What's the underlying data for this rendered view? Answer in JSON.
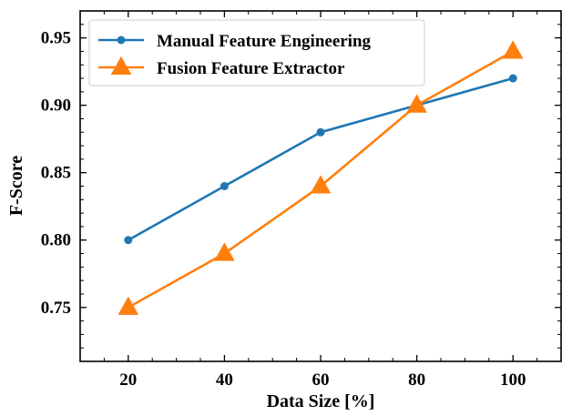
{
  "chart_data": {
    "type": "line",
    "xlabel": "Data Size [%]",
    "ylabel": "F-Score",
    "xlim": [
      10,
      110
    ],
    "ylim": [
      0.71,
      0.97
    ],
    "xticks": [
      20,
      40,
      60,
      80,
      100
    ],
    "yticks": [
      0.75,
      0.8,
      0.85,
      0.9,
      0.95
    ],
    "ytick_labels": [
      "0.75",
      "0.80",
      "0.85",
      "0.90",
      "0.95"
    ],
    "x": [
      20,
      40,
      60,
      80,
      100
    ],
    "series": [
      {
        "name": "Manual Feature Engineering",
        "values": [
          0.8,
          0.84,
          0.88,
          0.9,
          0.92
        ],
        "color": "#1f77b4",
        "marker": "circle"
      },
      {
        "name": "Fusion Feature Extractor",
        "values": [
          0.75,
          0.79,
          0.84,
          0.9,
          0.94
        ],
        "color": "#ff7f0e",
        "marker": "triangle"
      }
    ],
    "legend": "top-left",
    "grid": false
  }
}
